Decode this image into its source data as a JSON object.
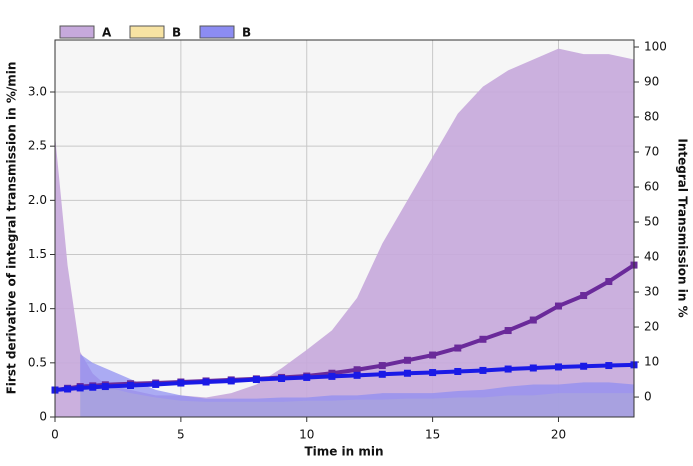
{
  "chart_data": {
    "type": "area",
    "x_label": "Time in min",
    "y_label": "First derivative of integral transmission in %/min",
    "y2_label": "Integral Transmission in %",
    "x": [
      0,
      0.5,
      1,
      1.5,
      2,
      3,
      4,
      5,
      6,
      7,
      8,
      9,
      10,
      11,
      12,
      13,
      14,
      15,
      16,
      17,
      18,
      19,
      20,
      21,
      22,
      23
    ],
    "series": [
      {
        "name": "A",
        "type": "area",
        "color": "#c6a9dc",
        "values": [
          2.6,
          1.4,
          0.6,
          0.4,
          0.3,
          0.25,
          0.2,
          0.2,
          0.18,
          0.22,
          0.3,
          0.45,
          0.62,
          0.8,
          1.1,
          1.6,
          2.0,
          2.4,
          2.8,
          3.05,
          3.2,
          3.3,
          3.4,
          3.35,
          3.35,
          3.3
        ]
      },
      {
        "name": "B",
        "type": "area",
        "color": "#f7e3a3",
        "values": [
          null,
          null,
          0.3,
          0.3,
          0.28,
          0.22,
          0.18,
          0.15,
          0.14,
          0.14,
          0.14,
          0.14,
          0.15,
          0.15,
          0.16,
          0.16,
          0.17,
          0.17,
          0.18,
          0.18,
          0.2,
          0.2,
          0.22,
          0.22,
          0.22,
          0.22
        ]
      },
      {
        "name": "B",
        "type": "area",
        "color": "#8c8cf2",
        "values": [
          null,
          null,
          0.58,
          0.5,
          0.45,
          0.35,
          0.25,
          0.2,
          0.17,
          0.17,
          0.17,
          0.18,
          0.18,
          0.2,
          0.2,
          0.22,
          0.22,
          0.22,
          0.24,
          0.25,
          0.28,
          0.3,
          0.3,
          0.32,
          0.32,
          0.3
        ]
      },
      {
        "type": "line",
        "axis": "y2",
        "color": "#6a2a9a",
        "values": [
          2,
          2.5,
          3,
          3.2,
          3.5,
          3.8,
          4,
          4.3,
          4.6,
          4.9,
          5.2,
          5.6,
          6,
          6.8,
          7.8,
          9,
          10.5,
          12,
          14,
          16.5,
          19,
          22,
          26,
          29,
          33,
          37.7
        ]
      },
      {
        "type": "line",
        "axis": "y2",
        "color": "#1a1ae6",
        "values": [
          2,
          2.3,
          2.6,
          2.8,
          3,
          3.3,
          3.6,
          4,
          4.3,
          4.6,
          5,
          5.3,
          5.6,
          5.9,
          6.2,
          6.5,
          6.8,
          7,
          7.3,
          7.6,
          8,
          8.3,
          8.6,
          8.8,
          9,
          9.2
        ]
      }
    ],
    "xlim": [
      0,
      23
    ],
    "xticks": [
      0,
      5,
      10,
      15,
      20
    ],
    "ylim": [
      0,
      3.48
    ],
    "yticks": [
      0,
      0.5,
      {
        "value": 1,
        "label": "1.0"
      },
      1.5,
      {
        "value": 2,
        "label": "2.0"
      },
      2.5,
      {
        "value": 3,
        "label": "3.0"
      }
    ],
    "y2lim": [
      -5.7,
      102
    ],
    "y2ticks": [
      0,
      10,
      20,
      30,
      40,
      50,
      60,
      70,
      80,
      90,
      100
    ],
    "grid": true
  }
}
